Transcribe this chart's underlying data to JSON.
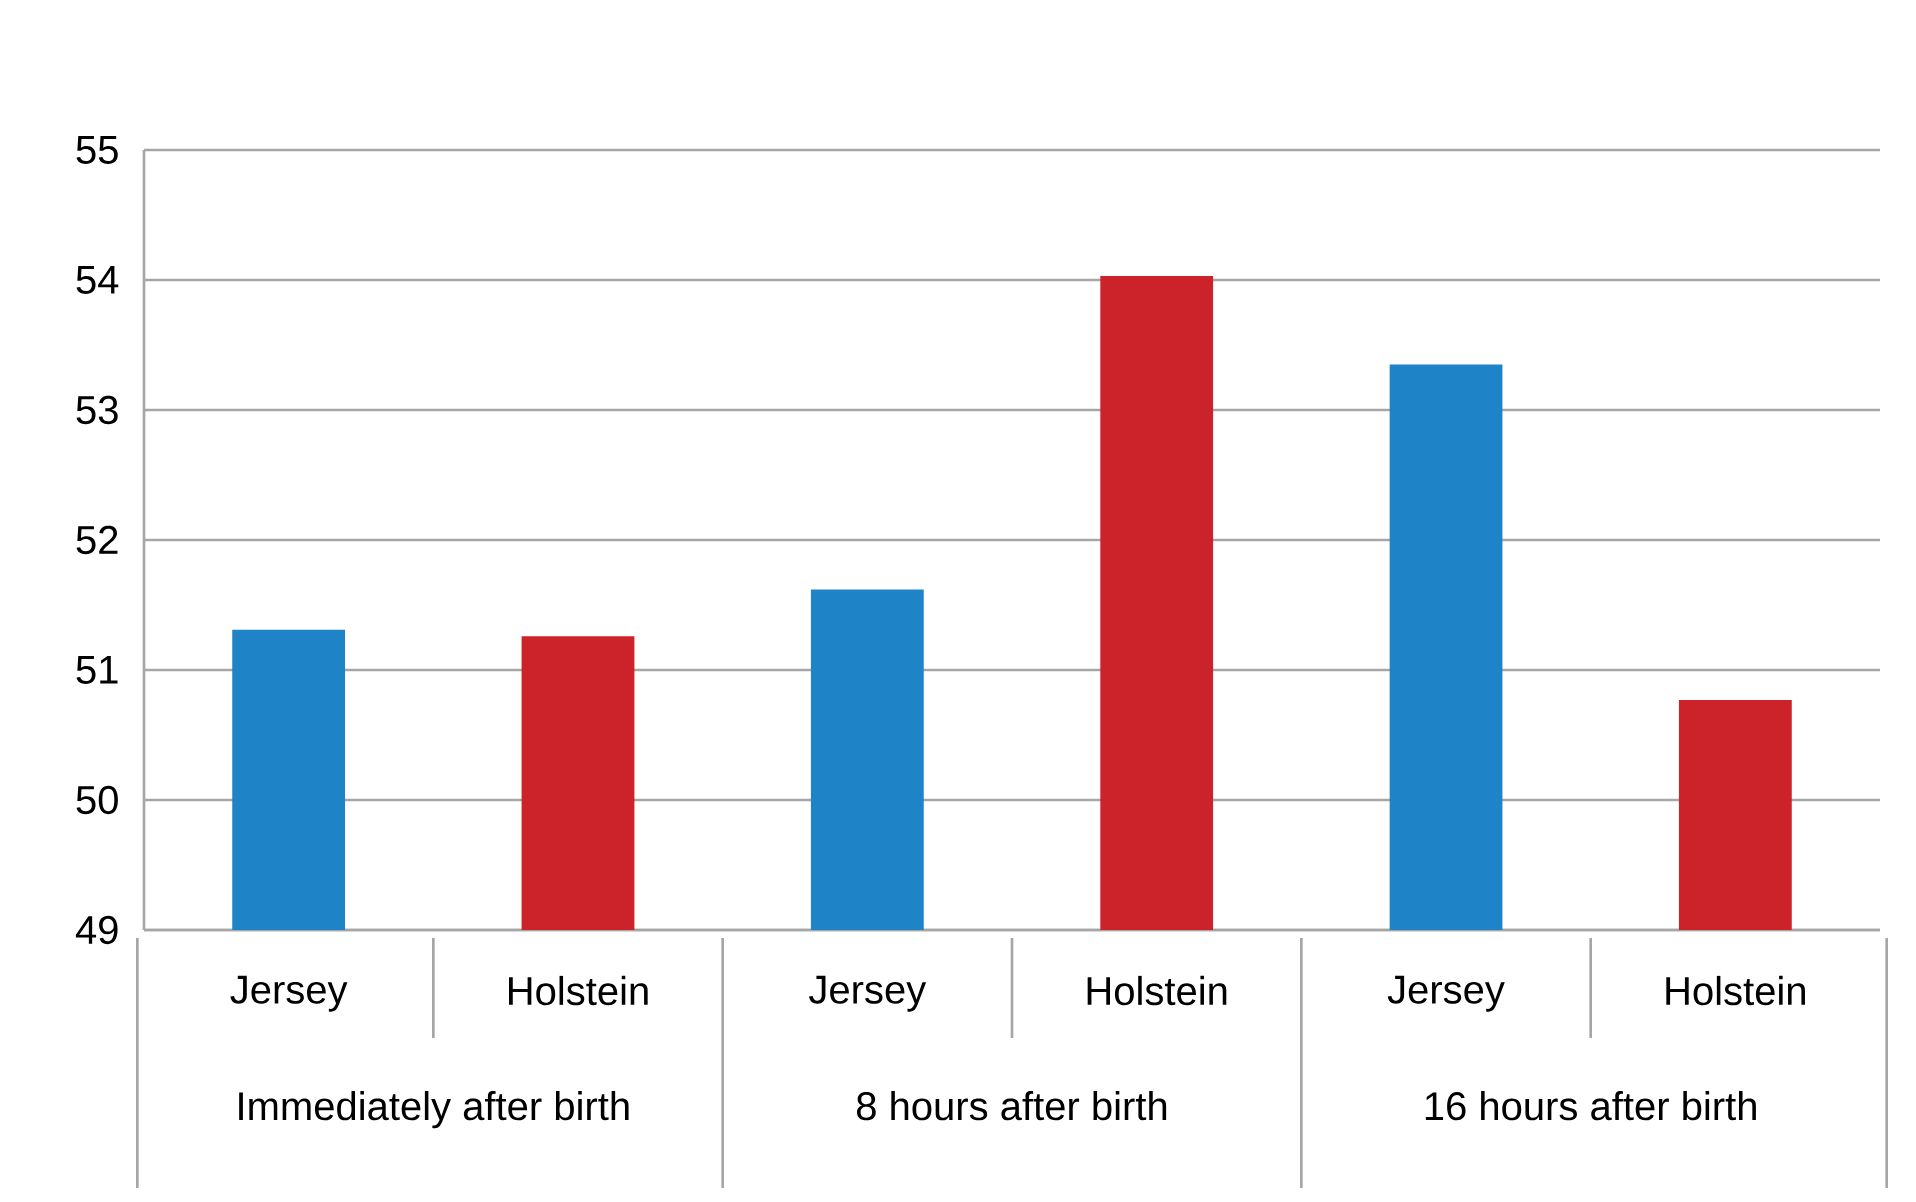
{
  "chart_data": {
    "type": "bar",
    "categories": [
      "Jersey",
      "Holstein",
      "Jersey",
      "Holstein",
      "Jersey",
      "Holstein"
    ],
    "values": [
      51.31,
      51.26,
      51.62,
      54.03,
      53.35,
      50.77
    ],
    "colors": [
      "#1f83c8",
      "#cc2229",
      "#1f83c8",
      "#cc2229",
      "#1f83c8",
      "#cc2229"
    ],
    "ylim": [
      49,
      55
    ],
    "yticks": [
      49,
      50,
      51,
      52,
      53,
      54,
      55
    ],
    "grid": "y",
    "annotations": [
      "Immediately after birth",
      "8 hours after birth",
      "16 hours after birth"
    ]
  }
}
